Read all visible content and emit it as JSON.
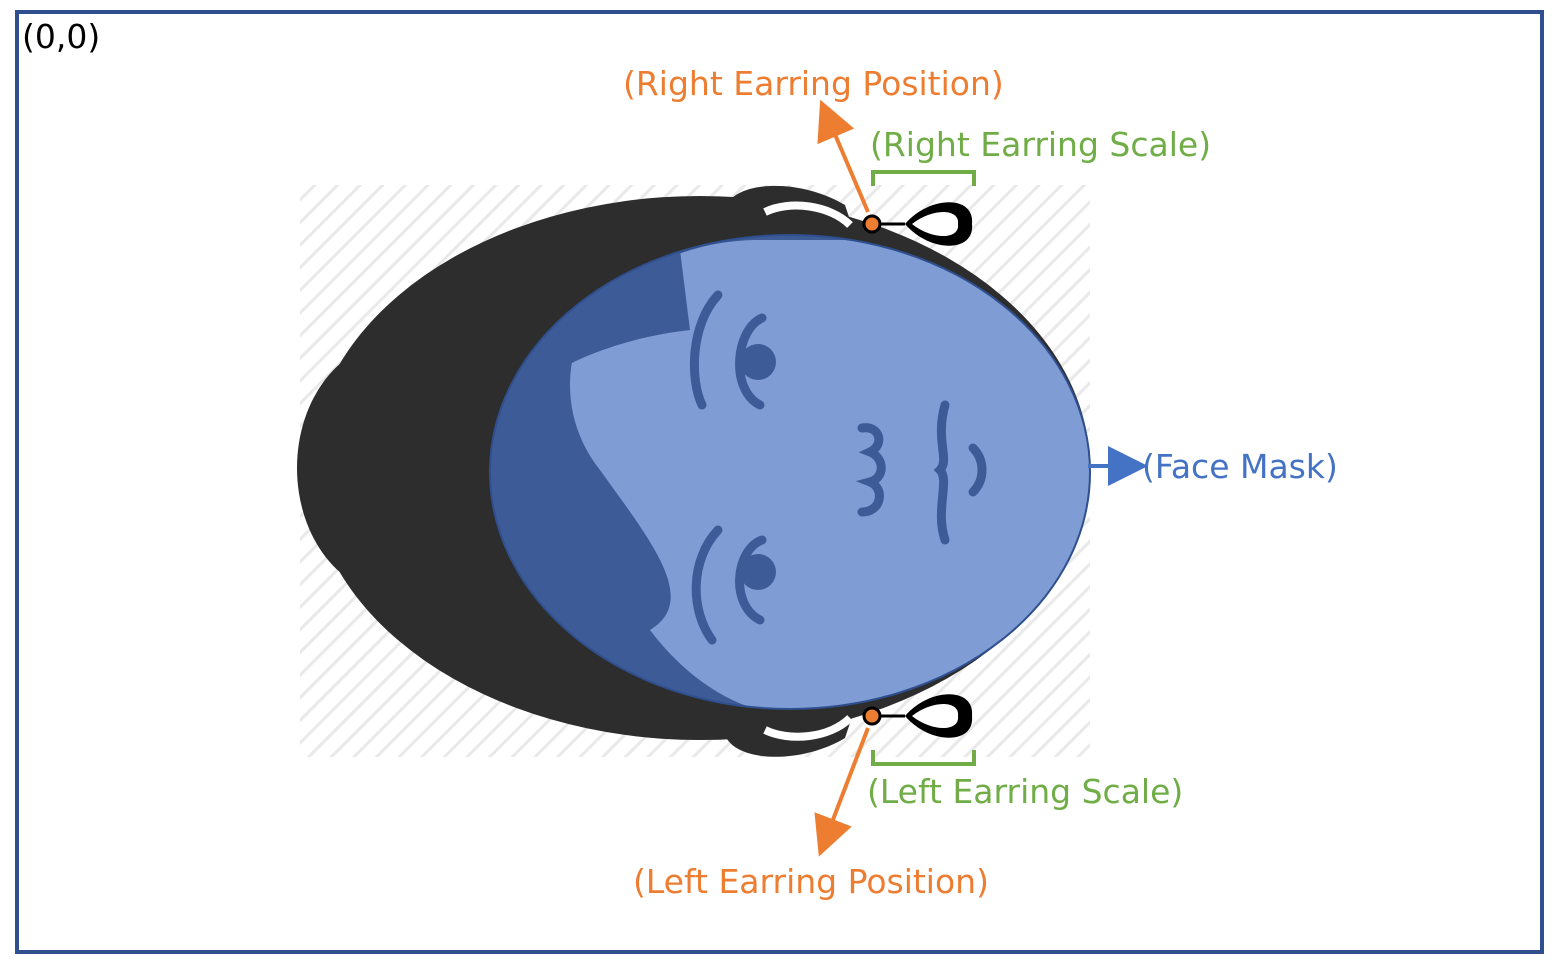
{
  "origin_label": "(0,0)",
  "labels": {
    "right_earring_position": "(Right Earring Position)",
    "right_earring_scale": "(Right Earring Scale)",
    "face_mask": "(Face Mask)",
    "left_earring_scale": "(Left Earring Scale)",
    "left_earring_position": "(Left Earring Position)"
  },
  "colors": {
    "position": "#ED7D31",
    "scale": "#70AD47",
    "mask": "#4472C4",
    "frame": "#2F4F8F",
    "hair": "#2D2D2D"
  }
}
